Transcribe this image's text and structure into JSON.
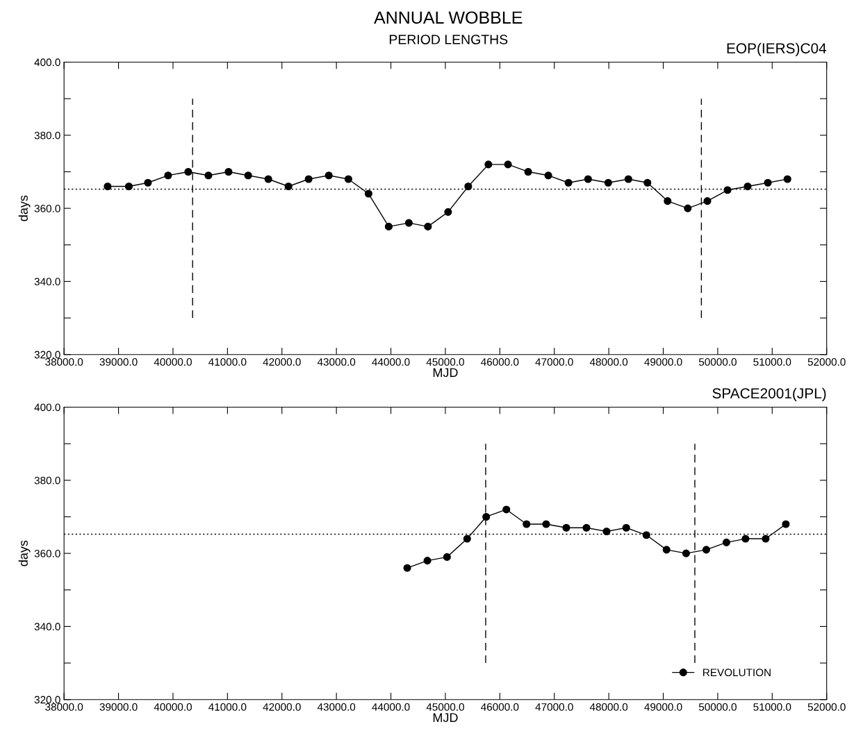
{
  "chart_data": [
    {
      "type": "line",
      "title": "ANNUAL WOBBLE",
      "subtitle": "PERIOD LENGTHS",
      "annotations": [
        "EOP(IERS)C04"
      ],
      "xlabel": "MJD",
      "ylabel": "days",
      "xlim": [
        38000,
        52000
      ],
      "ylim": [
        320,
        400
      ],
      "xticks": [
        {
          "value": 38000,
          "label": "38000.0"
        },
        {
          "value": 39000,
          "label": "39000.0"
        },
        {
          "value": 40000,
          "label": "40000.0"
        },
        {
          "value": 41000,
          "label": "41000.0"
        },
        {
          "value": 42000,
          "label": "42000.0"
        },
        {
          "value": 43000,
          "label": "43000.0"
        },
        {
          "value": 44000,
          "label": "44000.0"
        },
        {
          "value": 45000,
          "label": "45000.0"
        },
        {
          "value": 46000,
          "label": "46000.0"
        },
        {
          "value": 47000,
          "label": "47000.0"
        },
        {
          "value": 48000,
          "label": "48000.0"
        },
        {
          "value": 49000,
          "label": "49000.0"
        },
        {
          "value": 50000,
          "label": "50000.0"
        },
        {
          "value": 51000,
          "label": "51000.0"
        },
        {
          "value": 52000,
          "label": "52000.0"
        }
      ],
      "yticks": [
        {
          "value": 320,
          "label": "320.0"
        },
        {
          "value": 330,
          "label": null
        },
        {
          "value": 340,
          "label": "340.0"
        },
        {
          "value": 350,
          "label": null
        },
        {
          "value": 360,
          "label": "360.0"
        },
        {
          "value": 370,
          "label": null
        },
        {
          "value": 380,
          "label": "380.0"
        },
        {
          "value": 390,
          "label": null
        },
        {
          "value": 400,
          "label": "400.0"
        }
      ],
      "grid": false,
      "legend": false,
      "ref_lines": [
        {
          "axis": "y",
          "value": 365.25,
          "line_style": "dotted",
          "color": "#000000"
        }
      ],
      "series": [
        {
          "color": "#000000",
          "marker": "circle",
          "line_style": "solid",
          "x": [
            38800,
            39190,
            39540,
            39910,
            40280,
            40650,
            41020,
            41380,
            41750,
            42120,
            42490,
            42860,
            43220,
            43590,
            43960,
            44330,
            44680,
            45050,
            45420,
            45790,
            46150,
            46520,
            46890,
            47260,
            47620,
            47990,
            48360,
            48710,
            49080,
            49450,
            49810,
            50180,
            50550,
            50920,
            51280
          ],
          "values": [
            366,
            366,
            367,
            369,
            370,
            369,
            370,
            369,
            368,
            366,
            368,
            369,
            368,
            364,
            355,
            356,
            355,
            359,
            366,
            372,
            372,
            370,
            369,
            367,
            368,
            367,
            368,
            367,
            362,
            360,
            362,
            365,
            366,
            367,
            368
          ]
        },
        {
          "color": "#000000",
          "marker": "none",
          "line_style": "dashed",
          "x": [
            40360,
            40360
          ],
          "values": [
            330,
            390
          ]
        },
        {
          "color": "#000000",
          "marker": "none",
          "line_style": "dashed",
          "x": [
            49700,
            49700
          ],
          "values": [
            330,
            390
          ]
        }
      ]
    },
    {
      "type": "line",
      "annotations": [
        "SPACE2001(JPL)"
      ],
      "xlabel": "MJD",
      "ylabel": "days",
      "xlim": [
        38000,
        52000
      ],
      "ylim": [
        320,
        400
      ],
      "xticks": [
        {
          "value": 38000,
          "label": "38000.0"
        },
        {
          "value": 39000,
          "label": "39000.0"
        },
        {
          "value": 40000,
          "label": "40000.0"
        },
        {
          "value": 41000,
          "label": "41000.0"
        },
        {
          "value": 42000,
          "label": "42000.0"
        },
        {
          "value": 43000,
          "label": "43000.0"
        },
        {
          "value": 44000,
          "label": "44000.0"
        },
        {
          "value": 45000,
          "label": "45000.0"
        },
        {
          "value": 46000,
          "label": "46000.0"
        },
        {
          "value": 47000,
          "label": "47000.0"
        },
        {
          "value": 48000,
          "label": "48000.0"
        },
        {
          "value": 49000,
          "label": "49000.0"
        },
        {
          "value": 50000,
          "label": "50000.0"
        },
        {
          "value": 51000,
          "label": "51000.0"
        },
        {
          "value": 52000,
          "label": "52000.0"
        }
      ],
      "yticks": [
        {
          "value": 320,
          "label": "320.0"
        },
        {
          "value": 330,
          "label": null
        },
        {
          "value": 340,
          "label": "340.0"
        },
        {
          "value": 350,
          "label": null
        },
        {
          "value": 360,
          "label": "360.0"
        },
        {
          "value": 370,
          "label": null
        },
        {
          "value": 380,
          "label": "380.0"
        },
        {
          "value": 390,
          "label": null
        },
        {
          "value": 400,
          "label": "400.0"
        }
      ],
      "grid": false,
      "legend": "bottom right",
      "ref_lines": [
        {
          "axis": "y",
          "value": 365.25,
          "line_style": "dotted",
          "color": "#000000"
        }
      ],
      "series": [
        {
          "name": "REVOLUTION",
          "color": "#000000",
          "marker": "circle",
          "line_style": "solid",
          "x": [
            44300,
            44670,
            45030,
            45400,
            45750,
            46120,
            46490,
            46850,
            47220,
            47590,
            47960,
            48320,
            48690,
            49060,
            49420,
            49790,
            50160,
            50510,
            50880,
            51250
          ],
          "values": [
            356,
            358,
            359,
            364,
            370,
            372,
            368,
            368,
            367,
            367,
            366,
            367,
            365,
            361,
            360,
            361,
            363,
            364,
            364,
            368
          ]
        },
        {
          "color": "#000000",
          "marker": "none",
          "line_style": "dashed",
          "x": [
            45740,
            45740
          ],
          "values": [
            330,
            390
          ]
        },
        {
          "color": "#000000",
          "marker": "none",
          "line_style": "dashed",
          "x": [
            49580,
            49580
          ],
          "values": [
            330,
            390
          ]
        }
      ]
    }
  ]
}
